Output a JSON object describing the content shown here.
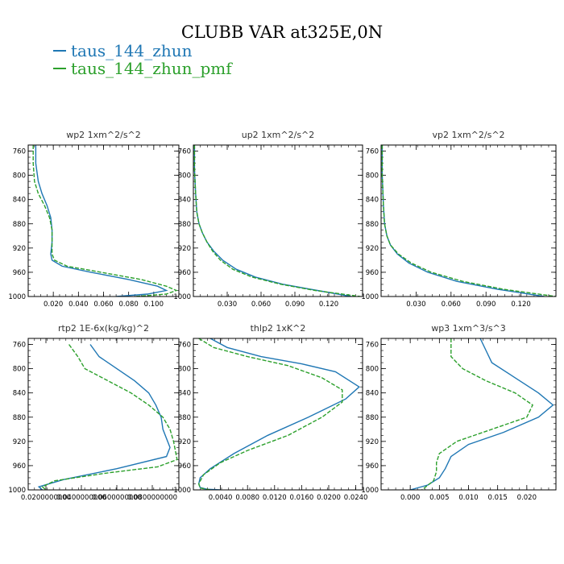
{
  "title": "CLUBB VAR at325E,0N",
  "legend": [
    {
      "name": "taus_144_zhun",
      "color": "#1f77b4"
    },
    {
      "name": "taus_144_zhun_pmf",
      "color": "#2ca02c"
    }
  ],
  "chart_data": [
    {
      "type": "line",
      "title": "wp2   1xm^2/s^2",
      "xlim": [
        0.0,
        0.12
      ],
      "ylim": [
        1000,
        750
      ],
      "xticks": [
        0.02,
        0.04,
        0.06,
        0.08,
        0.1
      ],
      "xtick_labels": [
        "0.020",
        "0.040",
        "0.060",
        "0.080",
        "0.100"
      ],
      "yticks": [
        760,
        800,
        840,
        880,
        920,
        960,
        1000
      ],
      "ytick_labels": [
        "760",
        "800",
        "840",
        "880",
        "920",
        "960",
        "1000"
      ],
      "series": [
        {
          "name": "taus_144_zhun",
          "x": [
            0.006,
            0.006,
            0.008,
            0.011,
            0.015,
            0.018,
            0.019,
            0.019,
            0.018,
            0.019,
            0.027,
            0.05,
            0.08,
            0.103,
            0.11,
            0.095,
            0.07
          ],
          "y": [
            750,
            780,
            810,
            830,
            850,
            870,
            890,
            910,
            930,
            940,
            950,
            960,
            972,
            983,
            990,
            996,
            1000
          ]
        },
        {
          "name": "taus_144_zhun_pmf",
          "x": [
            0.004,
            0.004,
            0.005,
            0.008,
            0.013,
            0.017,
            0.019,
            0.019,
            0.019,
            0.021,
            0.031,
            0.058,
            0.09,
            0.11,
            0.118,
            0.11,
            0.085
          ],
          "y": [
            750,
            780,
            810,
            830,
            850,
            870,
            890,
            910,
            930,
            940,
            950,
            960,
            972,
            983,
            990,
            996,
            1000
          ]
        }
      ]
    },
    {
      "type": "line",
      "title": "up2   1xm^2/s^2",
      "xlim": [
        0.0,
        0.15
      ],
      "ylim": [
        1000,
        750
      ],
      "xticks": [
        0.03,
        0.06,
        0.09,
        0.12
      ],
      "xtick_labels": [
        "0.030",
        "0.060",
        "0.090",
        "0.120"
      ],
      "yticks": [
        760,
        800,
        840,
        880,
        920,
        960,
        1000
      ],
      "ytick_labels": [
        "760",
        "800",
        "840",
        "880",
        "920",
        "960",
        "1000"
      ],
      "series": [
        {
          "name": "taus_144_zhun",
          "x": [
            0.001,
            0.001,
            0.002,
            0.003,
            0.005,
            0.008,
            0.012,
            0.018,
            0.026,
            0.038,
            0.055,
            0.08,
            0.11,
            0.14
          ],
          "y": [
            750,
            790,
            830,
            860,
            880,
            895,
            910,
            925,
            940,
            955,
            968,
            980,
            990,
            1000
          ]
        },
        {
          "name": "taus_144_zhun_pmf",
          "x": [
            0.001,
            0.001,
            0.002,
            0.003,
            0.005,
            0.008,
            0.012,
            0.017,
            0.024,
            0.035,
            0.052,
            0.078,
            0.108,
            0.148
          ],
          "y": [
            750,
            790,
            830,
            860,
            880,
            895,
            910,
            925,
            940,
            955,
            968,
            980,
            990,
            1000
          ]
        }
      ]
    },
    {
      "type": "line",
      "title": "vp2   1xm^2/s^2",
      "xlim": [
        0.0,
        0.15
      ],
      "ylim": [
        1000,
        750
      ],
      "xticks": [
        0.03,
        0.06,
        0.09,
        0.12
      ],
      "xtick_labels": [
        "0.030",
        "0.060",
        "0.090",
        "0.120"
      ],
      "yticks": [
        760,
        800,
        840,
        880,
        920,
        960,
        1000
      ],
      "ytick_labels": [
        "760",
        "800",
        "840",
        "880",
        "920",
        "960",
        "1000"
      ],
      "series": [
        {
          "name": "taus_144_zhun",
          "x": [
            0.001,
            0.001,
            0.002,
            0.003,
            0.005,
            0.008,
            0.014,
            0.024,
            0.04,
            0.065,
            0.1,
            0.14
          ],
          "y": [
            750,
            800,
            850,
            880,
            900,
            915,
            930,
            945,
            960,
            975,
            988,
            1000
          ]
        },
        {
          "name": "taus_144_zhun_pmf",
          "x": [
            0.001,
            0.001,
            0.002,
            0.003,
            0.005,
            0.008,
            0.015,
            0.026,
            0.043,
            0.07,
            0.105,
            0.15
          ],
          "y": [
            750,
            800,
            850,
            880,
            900,
            915,
            930,
            945,
            960,
            975,
            988,
            1000
          ]
        }
      ]
    },
    {
      "type": "line",
      "title": "rtp2   1E-6x(kg/kg)^2",
      "xlim": [
        0.01,
        0.095
      ],
      "ylim": [
        1000,
        750
      ],
      "xticks": [
        0.02,
        0.04,
        0.06,
        0.08
      ],
      "xtick_labels": [
        "0.0200000000",
        "0.0400000000",
        "0.0600000000",
        "0.0800000000"
      ],
      "yticks": [
        760,
        800,
        840,
        880,
        920,
        960,
        1000
      ],
      "ytick_labels": [
        "760",
        "800",
        "840",
        "880",
        "920",
        "960",
        "1000"
      ],
      "series": [
        {
          "name": "taus_144_zhun",
          "x": [
            0.045,
            0.05,
            0.06,
            0.07,
            0.078,
            0.082,
            0.085,
            0.086,
            0.09,
            0.088,
            0.06,
            0.03,
            0.016,
            0.018
          ],
          "y": [
            760,
            780,
            800,
            820,
            840,
            860,
            880,
            900,
            930,
            945,
            965,
            983,
            995,
            1000
          ]
        },
        {
          "name": "taus_144_zhun_pmf",
          "x": [
            0.033,
            0.038,
            0.042,
            0.055,
            0.068,
            0.078,
            0.086,
            0.09,
            0.092,
            0.094,
            0.083,
            0.055,
            0.025,
            0.018,
            0.02
          ],
          "y": [
            760,
            780,
            800,
            820,
            840,
            860,
            880,
            900,
            920,
            950,
            962,
            972,
            985,
            995,
            1000
          ]
        }
      ]
    },
    {
      "type": "line",
      "title": "thlp2   1xK^2",
      "xlim": [
        0.0,
        0.025
      ],
      "ylim": [
        1000,
        750
      ],
      "xticks": [
        0.004,
        0.008,
        0.012,
        0.016,
        0.02,
        0.024
      ],
      "xtick_labels": [
        "0.0040",
        "0.0080",
        "0.0120",
        "0.0160",
        "0.0200",
        "0.0240"
      ],
      "yticks": [
        760,
        800,
        840,
        880,
        920,
        960,
        1000
      ],
      "ytick_labels": [
        "760",
        "800",
        "840",
        "880",
        "920",
        "960",
        "1000"
      ],
      "series": [
        {
          "name": "taus_144_zhun",
          "x": [
            0.0025,
            0.005,
            0.01,
            0.016,
            0.021,
            0.0245,
            0.0225,
            0.017,
            0.011,
            0.006,
            0.0025,
            0.001,
            0.0008,
            0.001,
            0.002,
            0.004
          ],
          "y": [
            750,
            765,
            780,
            792,
            805,
            830,
            850,
            880,
            910,
            940,
            965,
            980,
            990,
            996,
            999,
            1000
          ]
        },
        {
          "name": "taus_144_zhun_pmf",
          "x": [
            0.0008,
            0.003,
            0.008,
            0.014,
            0.019,
            0.022,
            0.022,
            0.019,
            0.014,
            0.008,
            0.004,
            0.0015,
            0.0008,
            0.001,
            0.0025
          ],
          "y": [
            750,
            765,
            780,
            795,
            815,
            835,
            855,
            880,
            910,
            935,
            955,
            975,
            990,
            997,
            1000
          ]
        }
      ]
    },
    {
      "type": "line",
      "title": "wp3   1xm^3/s^3",
      "xlim": [
        -0.005,
        0.025
      ],
      "ylim": [
        1000,
        750
      ],
      "xticks": [
        0.0,
        0.005,
        0.01,
        0.015,
        0.02
      ],
      "xtick_labels": [
        "0.000",
        "0.005",
        "0.010",
        "0.015",
        "0.020"
      ],
      "yticks": [
        760,
        800,
        840,
        880,
        920,
        960,
        1000
      ],
      "ytick_labels": [
        "760",
        "800",
        "840",
        "880",
        "920",
        "960",
        "1000"
      ],
      "series": [
        {
          "name": "taus_144_zhun",
          "x": [
            0.012,
            0.013,
            0.014,
            0.018,
            0.022,
            0.0245,
            0.022,
            0.016,
            0.01,
            0.007,
            0.006,
            0.005,
            0.003,
            0.0
          ],
          "y": [
            750,
            770,
            790,
            815,
            840,
            860,
            880,
            905,
            925,
            945,
            965,
            980,
            992,
            1000
          ]
        },
        {
          "name": "taus_144_zhun_pmf",
          "x": [
            0.007,
            0.007,
            0.009,
            0.013,
            0.018,
            0.021,
            0.02,
            0.014,
            0.008,
            0.005,
            0.0045,
            0.0045,
            0.004,
            0.002
          ],
          "y": [
            750,
            780,
            800,
            820,
            840,
            860,
            880,
            900,
            920,
            940,
            955,
            970,
            985,
            1000
          ]
        }
      ]
    }
  ]
}
